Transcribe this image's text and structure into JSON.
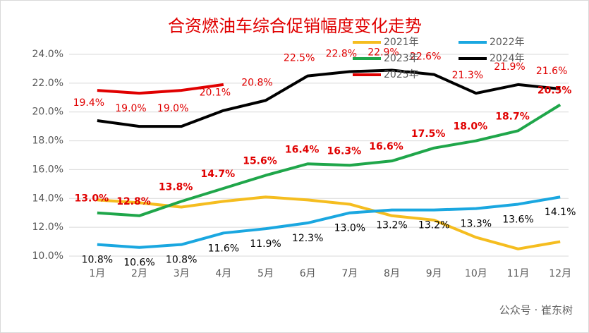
{
  "chart_data": {
    "type": "line",
    "title": "合资燃油车综合促销幅度变化走势",
    "categories": [
      "1月",
      "2月",
      "3月",
      "4月",
      "5月",
      "6月",
      "7月",
      "8月",
      "9月",
      "10月",
      "11月",
      "12月"
    ],
    "ylim": [
      10,
      24
    ],
    "yticks": [
      {
        "value": 10,
        "label": "10.0%"
      },
      {
        "value": 12,
        "label": "12.0%"
      },
      {
        "value": 14,
        "label": "14.0%"
      },
      {
        "value": 16,
        "label": "16.0%"
      },
      {
        "value": 18,
        "label": "18.0%"
      },
      {
        "value": 20,
        "label": "20.0%"
      },
      {
        "value": 22,
        "label": "22.0%"
      },
      {
        "value": 24,
        "label": "24.0%"
      }
    ],
    "grid": true,
    "series": [
      {
        "name": "2021年",
        "color": "#f5bd1f",
        "values": [
          13.9,
          13.7,
          13.4,
          13.8,
          14.1,
          13.9,
          13.6,
          12.8,
          12.5,
          11.3,
          10.5,
          11.0
        ]
      },
      {
        "name": "2022年",
        "color": "#1aa7e0",
        "values": [
          10.8,
          10.6,
          10.8,
          11.6,
          11.9,
          12.3,
          13.0,
          13.2,
          13.2,
          13.3,
          13.6,
          14.1
        ],
        "value_labels": [
          "10.8%",
          "10.6%",
          "10.8%",
          "11.6%",
          "11.9%",
          "12.3%",
          "13.0%",
          "13.2%",
          "13.2%",
          "13.3%",
          "13.6%",
          "14.1%"
        ],
        "label_color": "#000000"
      },
      {
        "name": "2023年",
        "color": "#1fa64a",
        "values": [
          13.0,
          12.8,
          13.8,
          14.7,
          15.6,
          16.4,
          16.3,
          16.6,
          17.5,
          18.0,
          18.7,
          20.5
        ],
        "value_labels": [
          "13.0%",
          "12.8%",
          "13.8%",
          "14.7%",
          "15.6%",
          "16.4%",
          "16.3%",
          "16.6%",
          "17.5%",
          "18.0%",
          "18.7%",
          "20.5%"
        ],
        "label_color": "#e00000"
      },
      {
        "name": "2024年",
        "color": "#000000",
        "values": [
          19.4,
          19.0,
          19.0,
          20.1,
          20.8,
          22.5,
          22.8,
          22.9,
          22.6,
          21.3,
          21.9,
          21.6
        ],
        "value_labels": [
          "19.4%",
          "19.0%",
          "19.0%",
          "20.1%",
          "20.8%",
          "22.5%",
          "22.8%",
          "22.9%",
          "22.6%",
          "21.3%",
          "21.9%",
          "21.6%"
        ],
        "label_color": "#e00000"
      },
      {
        "name": "2025年",
        "color": "#e00000",
        "values": [
          21.5,
          21.3,
          21.5,
          21.9,
          null,
          null,
          null,
          null,
          null,
          null,
          null,
          null
        ]
      }
    ],
    "watermark": "公众号 · 崔东树"
  }
}
